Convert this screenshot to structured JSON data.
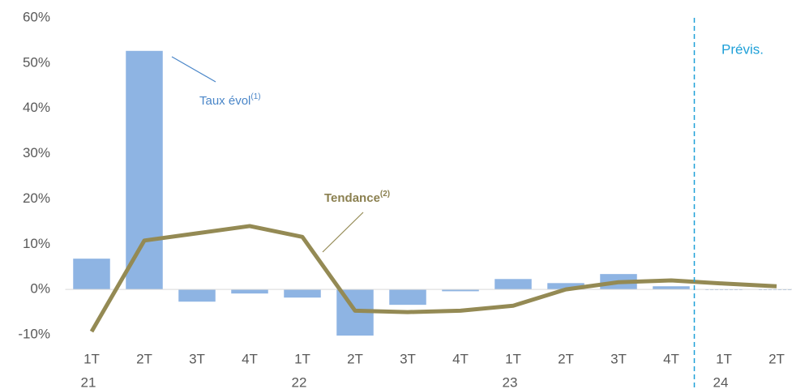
{
  "chart_data": {
    "type": "bar_line",
    "categories": [
      "1T",
      "2T",
      "3T",
      "4T",
      "1T",
      "2T",
      "3T",
      "4T",
      "1T",
      "2T",
      "3T",
      "4T",
      "1T",
      "2T"
    ],
    "year_labels": [
      "21",
      null,
      null,
      null,
      "22",
      null,
      null,
      null,
      "23",
      null,
      null,
      null,
      "24",
      null
    ],
    "series": [
      {
        "name": "Taux évol",
        "superscript": "(1)",
        "kind": "bar",
        "color": "#8eb4e3",
        "label_color": "#4a86c8",
        "values": [
          6.8,
          52.7,
          -2.7,
          -0.9,
          -1.8,
          -10.2,
          -3.4,
          -0.4,
          2.3,
          1.4,
          3.4,
          0.7,
          -0.5,
          -0.5
        ]
      },
      {
        "name": "Tendance",
        "superscript": "(2)",
        "kind": "line",
        "color": "#948a54",
        "label_color": "#8b8050",
        "values": [
          -9.3,
          10.8,
          12.4,
          14.0,
          11.6,
          -4.7,
          -5.0,
          -4.7,
          -3.6,
          0.0,
          1.6,
          2.0,
          1.3,
          0.7
        ]
      }
    ],
    "forecast": {
      "label": "Prévis.",
      "from_index": 12,
      "color": "#1fa0d8"
    },
    "ylim": [
      -10,
      60
    ],
    "yticks": [
      {
        "value": -10,
        "label": "-10%"
      },
      {
        "value": 0,
        "label": "0%"
      },
      {
        "value": 10,
        "label": "10%"
      },
      {
        "value": 20,
        "label": "20%"
      },
      {
        "value": 30,
        "label": "30%"
      },
      {
        "value": 40,
        "label": "40%"
      },
      {
        "value": 50,
        "label": "50%"
      },
      {
        "value": 60,
        "label": "60%"
      }
    ]
  }
}
